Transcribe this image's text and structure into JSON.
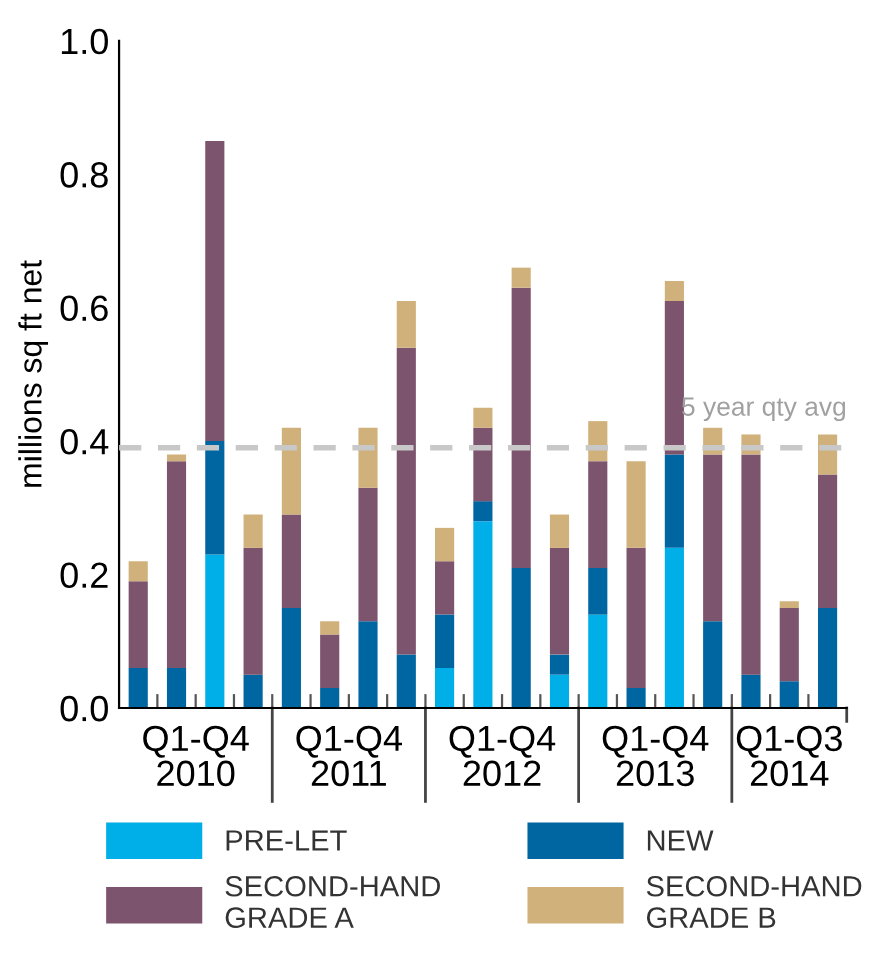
{
  "chart_data": {
    "type": "bar",
    "stacked": true,
    "ylabel": "millions sq ft net",
    "categories": [
      null,
      null,
      null,
      null,
      null,
      null,
      null,
      null,
      null,
      null,
      null,
      null,
      null,
      null,
      null,
      null,
      null,
      null,
      null
    ],
    "series": [
      {
        "name": "PRE-LET",
        "color": "#00aee8",
        "values": [
          0,
          0,
          0.23,
          0,
          0,
          0,
          0,
          0,
          0.06,
          0.28,
          0,
          0.05,
          0.14,
          0,
          0.24,
          0,
          0,
          0,
          0
        ]
      },
      {
        "name": "NEW",
        "color": "#0066a1",
        "values": [
          0.06,
          0.06,
          0.17,
          0.05,
          0.15,
          0.03,
          0.13,
          0.08,
          0.08,
          0.03,
          0.21,
          0.03,
          0.07,
          0.03,
          0.14,
          0.13,
          0.05,
          0.04,
          0.15
        ]
      },
      {
        "name": "SECOND-HAND\nGRADE A",
        "color": "#7d546e",
        "values": [
          0.13,
          0.31,
          0.45,
          0.19,
          0.14,
          0.08,
          0.2,
          0.46,
          0.08,
          0.11,
          0.42,
          0.16,
          0.16,
          0.21,
          0.23,
          0.25,
          0.33,
          0.11,
          0.2
        ]
      },
      {
        "name": "SECOND-HAND\nGRADE B",
        "color": "#d1b17b",
        "values": [
          0.03,
          0.01,
          0,
          0.05,
          0.13,
          0.02,
          0.09,
          0.07,
          0.05,
          0.03,
          0.03,
          0.05,
          0.06,
          0.13,
          0.03,
          0.04,
          0.03,
          0.01,
          0.06
        ]
      }
    ],
    "ylim": [
      0,
      1.0
    ],
    "yticks": [
      {
        "value": 0,
        "label": "0.0"
      },
      {
        "value": 0.2,
        "label": "0.2"
      },
      {
        "value": 0.4,
        "label": "0.4"
      },
      {
        "value": 0.6,
        "label": "0.6"
      },
      {
        "value": 0.8,
        "label": "0.8"
      },
      {
        "value": 1.0,
        "label": "1.0"
      }
    ],
    "ref_lines": [
      {
        "axis": "y",
        "value": 0.39,
        "label": "5 year qty avg",
        "color": "#c8c8c8",
        "line_style": "dashed"
      }
    ],
    "annotations": [
      "Q1-Q4\n2010",
      "Q1-Q4\n2011",
      "Q1-Q4\n2012",
      "Q1-Q4\n2013",
      "Q1-Q3\n2014"
    ],
    "legend": "bottom",
    "grid": false
  }
}
